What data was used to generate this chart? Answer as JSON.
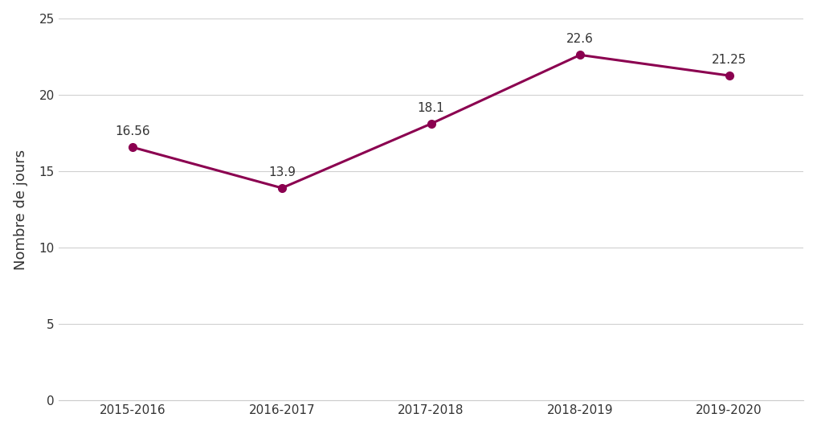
{
  "categories": [
    "2015-2016",
    "2016-2017",
    "2017-2018",
    "2018-2019",
    "2019-2020"
  ],
  "values": [
    16.56,
    13.9,
    18.1,
    22.6,
    21.25
  ],
  "labels": [
    "16.56",
    "13.9",
    "18.1",
    "22.6",
    "21.25"
  ],
  "line_color": "#8B0050",
  "marker_style": "o",
  "marker_size": 7,
  "line_width": 2.2,
  "ylabel": "Nombre de jours",
  "ylim": [
    0,
    25
  ],
  "yticks": [
    0,
    5,
    10,
    15,
    20,
    25
  ],
  "background_color": "#ffffff",
  "plot_bg_color": "#ffffff",
  "grid_color": "#d0d0d0",
  "label_fontsize": 11,
  "tick_fontsize": 11,
  "ylabel_fontsize": 13
}
